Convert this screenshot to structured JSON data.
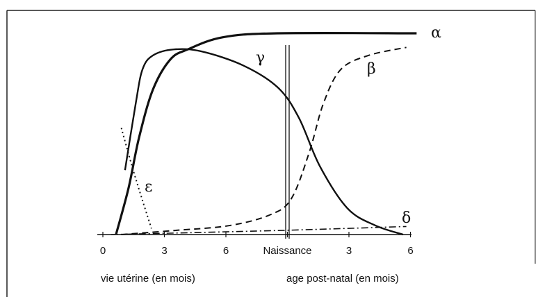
{
  "chart_data": {
    "type": "line",
    "xlabels": [
      "vie utérine (en mois)",
      "age post-natal (en mois)"
    ],
    "xlim": [
      0,
      15.4
    ],
    "xticks": [
      0,
      3,
      6,
      {
        "value": 9,
        "label": "Naissance"
      },
      {
        "value": 12,
        "label": "3"
      },
      {
        "value": 15,
        "label": "6"
      }
    ],
    "ylim": [
      0,
      100
    ],
    "series": [
      {
        "name": "α",
        "color": "#111",
        "style": "solid",
        "width": 3.2,
        "x": [
          0.64,
          1.25,
          1.76,
          2.44,
          3.29,
          4.14,
          5.83,
          8.5,
          15.3
        ],
        "values": [
          0,
          23,
          48,
          72,
          87,
          92,
          98,
          100,
          100
        ]
      },
      {
        "name": "β",
        "color": "#111",
        "style": "dashed",
        "width": 2,
        "x": [
          0.9,
          3.46,
          6.2,
          8.2,
          9.2,
          10.07,
          10.75,
          11.6,
          12.95,
          14.8
        ],
        "values": [
          0,
          2,
          4.5,
          10,
          18,
          41,
          65,
          82,
          89,
          93
        ]
      },
      {
        "name": "γ",
        "color": "#111",
        "style": "solid",
        "width": 2.4,
        "x": [
          1.08,
          1.6,
          1.93,
          2.44,
          3.46,
          4.81,
          6.85,
          8.54,
          9.56,
          10.58,
          11.93,
          13.29,
          14.64
        ],
        "values": [
          32,
          65,
          82,
          89,
          92,
          91,
          84,
          73,
          58,
          34,
          13,
          4.5,
          0
        ]
      },
      {
        "name": "δ",
        "color": "#111",
        "style": "dashdot",
        "width": 1.6,
        "x": [
          0.4,
          8.5,
          14.8
        ],
        "values": [
          0,
          2,
          4
        ]
      },
      {
        "name": "ε",
        "color": "#111",
        "style": "dotted",
        "width": 2,
        "x": [
          0.9,
          1.42,
          1.93,
          2.37
        ],
        "values": [
          53,
          34,
          17,
          3
        ]
      }
    ]
  }
}
